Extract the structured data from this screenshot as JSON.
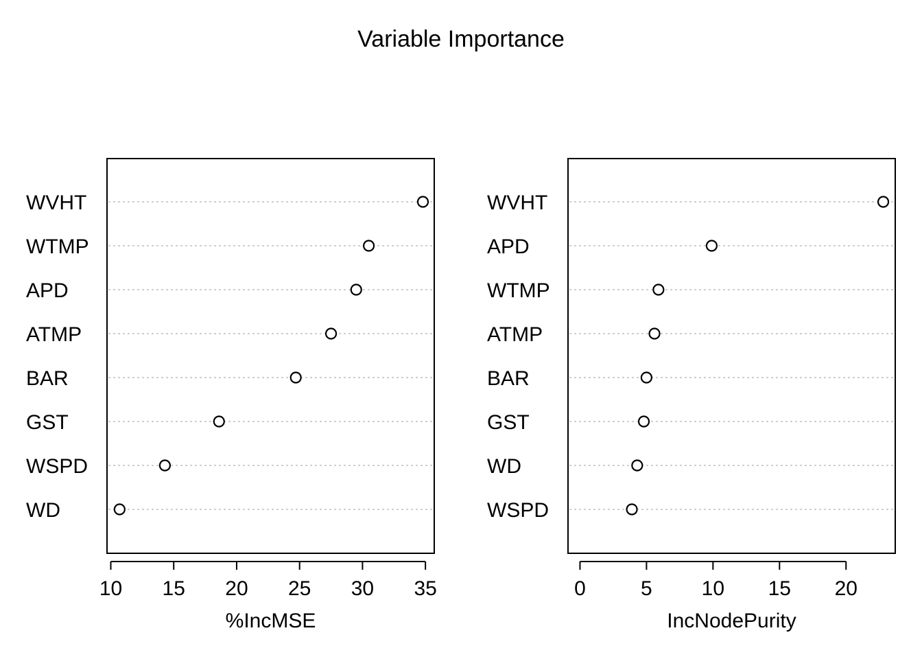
{
  "title": "Variable Importance",
  "chart_data": [
    {
      "type": "scatter",
      "xlabel": "%IncMSE",
      "xticks": [
        10,
        15,
        20,
        25,
        30,
        35
      ],
      "xlim": [
        9.7,
        35.7
      ],
      "categories": [
        "WVHT",
        "WTMP",
        "APD",
        "ATMP",
        "BAR",
        "GST",
        "WSPD",
        "WD"
      ],
      "values": [
        34.8,
        30.5,
        29.5,
        27.5,
        24.7,
        18.6,
        14.3,
        10.7
      ],
      "grid": true
    },
    {
      "type": "scatter",
      "xlabel": "IncNodePurity",
      "xticks": [
        0,
        5,
        10,
        15,
        20
      ],
      "xlim": [
        -0.9,
        23.7
      ],
      "categories": [
        "WVHT",
        "APD",
        "WTMP",
        "ATMP",
        "BAR",
        "GST",
        "WD",
        "WSPD"
      ],
      "values": [
        22.8,
        9.9,
        5.9,
        5.6,
        5.0,
        4.8,
        4.3,
        3.9
      ],
      "grid": true
    }
  ]
}
